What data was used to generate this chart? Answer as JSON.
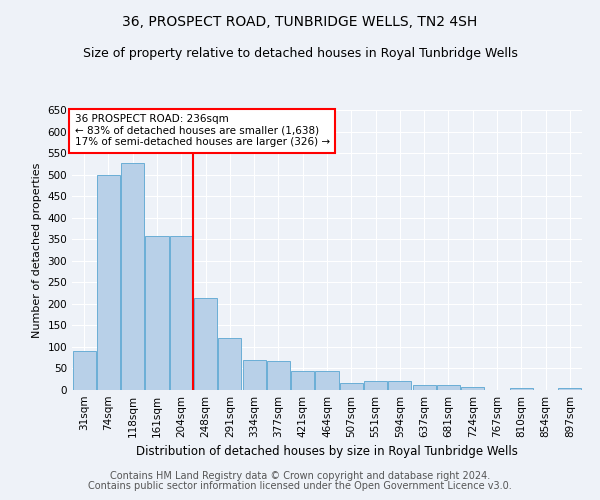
{
  "title": "36, PROSPECT ROAD, TUNBRIDGE WELLS, TN2 4SH",
  "subtitle": "Size of property relative to detached houses in Royal Tunbridge Wells",
  "xlabel": "Distribution of detached houses by size in Royal Tunbridge Wells",
  "ylabel": "Number of detached properties",
  "footer_line1": "Contains HM Land Registry data © Crown copyright and database right 2024.",
  "footer_line2": "Contains public sector information licensed under the Open Government Licence v3.0.",
  "categories": [
    "31sqm",
    "74sqm",
    "118sqm",
    "161sqm",
    "204sqm",
    "248sqm",
    "291sqm",
    "334sqm",
    "377sqm",
    "421sqm",
    "464sqm",
    "507sqm",
    "551sqm",
    "594sqm",
    "637sqm",
    "681sqm",
    "724sqm",
    "767sqm",
    "810sqm",
    "854sqm",
    "897sqm"
  ],
  "values": [
    90,
    500,
    527,
    358,
    358,
    213,
    120,
    70,
    68,
    43,
    43,
    16,
    20,
    20,
    11,
    11,
    8,
    0,
    5,
    0,
    4
  ],
  "bar_color": "#b8d0e8",
  "bar_edge_color": "#6aaed6",
  "vline_color": "red",
  "vline_x": 4.5,
  "annotation_text_line1": "36 PROSPECT ROAD: 236sqm",
  "annotation_text_line2": "← 83% of detached houses are smaller (1,638)",
  "annotation_text_line3": "17% of semi-detached houses are larger (326) →",
  "annotation_box_color": "white",
  "annotation_box_edge_color": "red",
  "ylim": [
    0,
    650
  ],
  "yticks": [
    0,
    50,
    100,
    150,
    200,
    250,
    300,
    350,
    400,
    450,
    500,
    550,
    600,
    650
  ],
  "bg_color": "#eef2f8",
  "grid_color": "#ffffff",
  "title_fontsize": 10,
  "subtitle_fontsize": 9,
  "ylabel_fontsize": 8,
  "xlabel_fontsize": 8.5,
  "tick_fontsize": 7.5,
  "annotation_fontsize": 7.5,
  "footer_fontsize": 7
}
